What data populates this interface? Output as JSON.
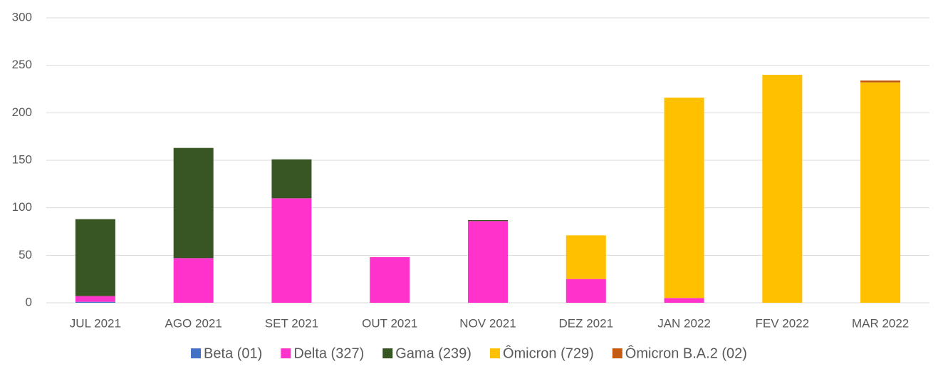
{
  "chart_data": {
    "type": "stacked_bar",
    "categories": [
      "JUL 2021",
      "AGO 2021",
      "SET 2021",
      "OUT 2021",
      "NOV 2021",
      "DEZ 2021",
      "JAN 2022",
      "FEV 2022",
      "MAR 2022"
    ],
    "series": [
      {
        "name": "Beta (01)",
        "color": "#4472c4",
        "values": [
          1,
          0,
          0,
          0,
          0,
          0,
          0,
          0,
          0
        ]
      },
      {
        "name": "Delta (327)",
        "color": "#ff33cc",
        "values": [
          6,
          47,
          110,
          48,
          86,
          25,
          5,
          0,
          0
        ]
      },
      {
        "name": "Gama (239)",
        "color": "#375623",
        "values": [
          81,
          116,
          41,
          0,
          1,
          0,
          0,
          0,
          0
        ]
      },
      {
        "name": "Ômicron (729)",
        "color": "#ffc000",
        "values": [
          0,
          0,
          0,
          0,
          0,
          46,
          211,
          240,
          232
        ]
      },
      {
        "name": "Ômicron B.A.2 (02)",
        "color": "#c55a11",
        "values": [
          0,
          0,
          0,
          0,
          0,
          0,
          0,
          0,
          2
        ]
      }
    ],
    "ylim": [
      0,
      300
    ],
    "yticks": [
      0,
      50,
      100,
      150,
      200,
      250,
      300
    ],
    "grid": true,
    "legend": "bottom"
  }
}
